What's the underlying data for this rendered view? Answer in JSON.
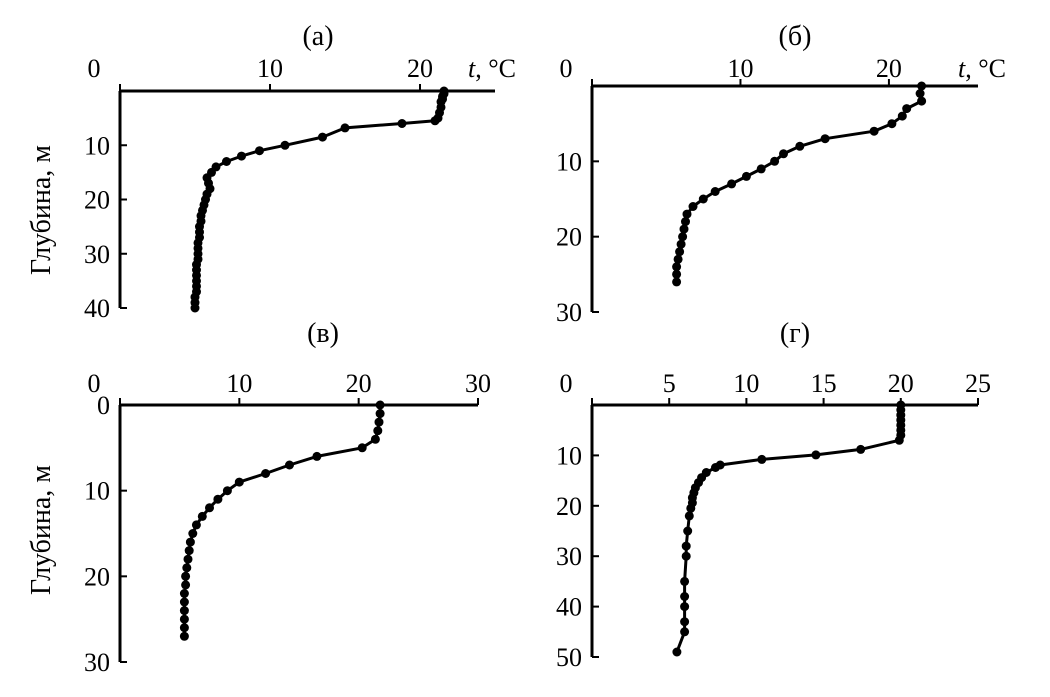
{
  "figure": {
    "ylabel": "Глубина, м",
    "xlabel_unit": "t, °C"
  },
  "chart_data": [
    {
      "type": "line",
      "title": "(а)",
      "xlabel": "t, °C",
      "ylabel": "Глубина, м",
      "xlim": [
        0,
        25
      ],
      "ylim": [
        0,
        40
      ],
      "xticks": [
        0,
        10,
        20
      ],
      "yticks": [
        10,
        20,
        30,
        40
      ],
      "series": [
        {
          "x": [
            21.6,
            21.6,
            21.5,
            21.5,
            21.4,
            21.4,
            21.3,
            21.2,
            21.0,
            18.8,
            15.0,
            13.5,
            11.0,
            9.3,
            8.1,
            7.1,
            6.4,
            6.1,
            5.8,
            5.9,
            6.0,
            5.8,
            5.7,
            5.6,
            5.5,
            5.4,
            5.4,
            5.3,
            5.3,
            5.3,
            5.2,
            5.2,
            5.2,
            5.2,
            5.1,
            5.1,
            5.1,
            5.1,
            5.1,
            5.1,
            5.0,
            5.0,
            5.0
          ],
          "y": [
            0,
            0.5,
            1,
            1.5,
            2,
            3,
            4,
            5,
            5.5,
            6,
            6.8,
            8.5,
            10,
            11,
            12,
            13,
            14,
            15,
            16,
            17,
            18,
            19,
            20,
            21,
            22,
            23,
            24,
            25,
            26,
            27,
            28,
            29,
            30,
            31,
            32,
            33,
            34,
            35,
            36,
            37,
            38,
            39,
            40
          ]
        }
      ]
    },
    {
      "type": "line",
      "title": "(б)",
      "xlabel": "t, °C",
      "ylabel": "",
      "xlim": [
        0,
        26
      ],
      "ylim": [
        0,
        30
      ],
      "xticks": [
        0,
        10,
        20
      ],
      "yticks": [
        10,
        20,
        30
      ],
      "series": [
        {
          "x": [
            22.2,
            22.1,
            22.2,
            21.2,
            20.9,
            20.2,
            19.0,
            15.7,
            14.0,
            12.9,
            12.3,
            11.4,
            10.4,
            9.4,
            8.3,
            7.5,
            6.8,
            6.4,
            6.3,
            6.2,
            6.1,
            6.0,
            5.9,
            5.8,
            5.7,
            5.7,
            5.7
          ],
          "y": [
            0,
            1,
            2,
            3,
            4,
            5,
            6,
            7,
            8,
            9,
            10,
            11,
            12,
            13,
            14,
            15,
            16,
            17,
            18,
            19,
            20,
            21,
            22,
            23,
            24,
            25,
            26
          ]
        }
      ]
    },
    {
      "type": "line",
      "title": "(в)",
      "xlabel": "",
      "ylabel": "Глубина, м",
      "xlim": [
        0,
        30
      ],
      "ylim": [
        0,
        30
      ],
      "xticks": [
        0,
        10,
        20,
        30
      ],
      "yticks": [
        0,
        10,
        20,
        30
      ],
      "series": [
        {
          "x": [
            21.8,
            21.8,
            21.7,
            21.6,
            21.4,
            20.3,
            16.5,
            14.2,
            12.2,
            10.0,
            9.0,
            8.2,
            7.5,
            6.9,
            6.4,
            6.1,
            5.9,
            5.8,
            5.7,
            5.6,
            5.5,
            5.5,
            5.4,
            5.4,
            5.4,
            5.4,
            5.4,
            5.4
          ],
          "y": [
            0,
            1,
            2,
            3,
            4,
            5,
            6,
            7,
            8,
            9,
            10,
            11,
            12,
            13,
            14,
            15,
            16,
            17,
            18,
            19,
            20,
            21,
            22,
            23,
            24,
            25,
            26,
            27
          ]
        }
      ]
    },
    {
      "type": "line",
      "title": "(г)",
      "xlabel": "",
      "ylabel": "",
      "xlim": [
        0,
        25
      ],
      "ylim": [
        0,
        50
      ],
      "xticks": [
        0,
        5,
        10,
        15,
        20,
        25
      ],
      "yticks": [
        10,
        20,
        30,
        40,
        50
      ],
      "series": [
        {
          "x": [
            20.0,
            20.0,
            20.0,
            20.0,
            20.0,
            20.0,
            20.0,
            19.9,
            17.4,
            14.5,
            11.0,
            8.3,
            8.0,
            7.4,
            7.1,
            6.9,
            6.7,
            6.6,
            6.5,
            6.5,
            6.4,
            6.3,
            6.2,
            6.1,
            6.1,
            6.0,
            6.0,
            6.0,
            6.0,
            6.0,
            5.5
          ],
          "y": [
            0,
            1,
            2,
            3,
            4,
            5,
            6,
            7,
            8.8,
            9.9,
            10.8,
            11.9,
            12.4,
            13.4,
            14.4,
            15.4,
            16.4,
            17.4,
            18.4,
            19.4,
            20.5,
            22.0,
            25.0,
            28.0,
            30.0,
            35.0,
            38.0,
            40.0,
            43.0,
            45.0,
            49.0
          ]
        }
      ]
    }
  ]
}
